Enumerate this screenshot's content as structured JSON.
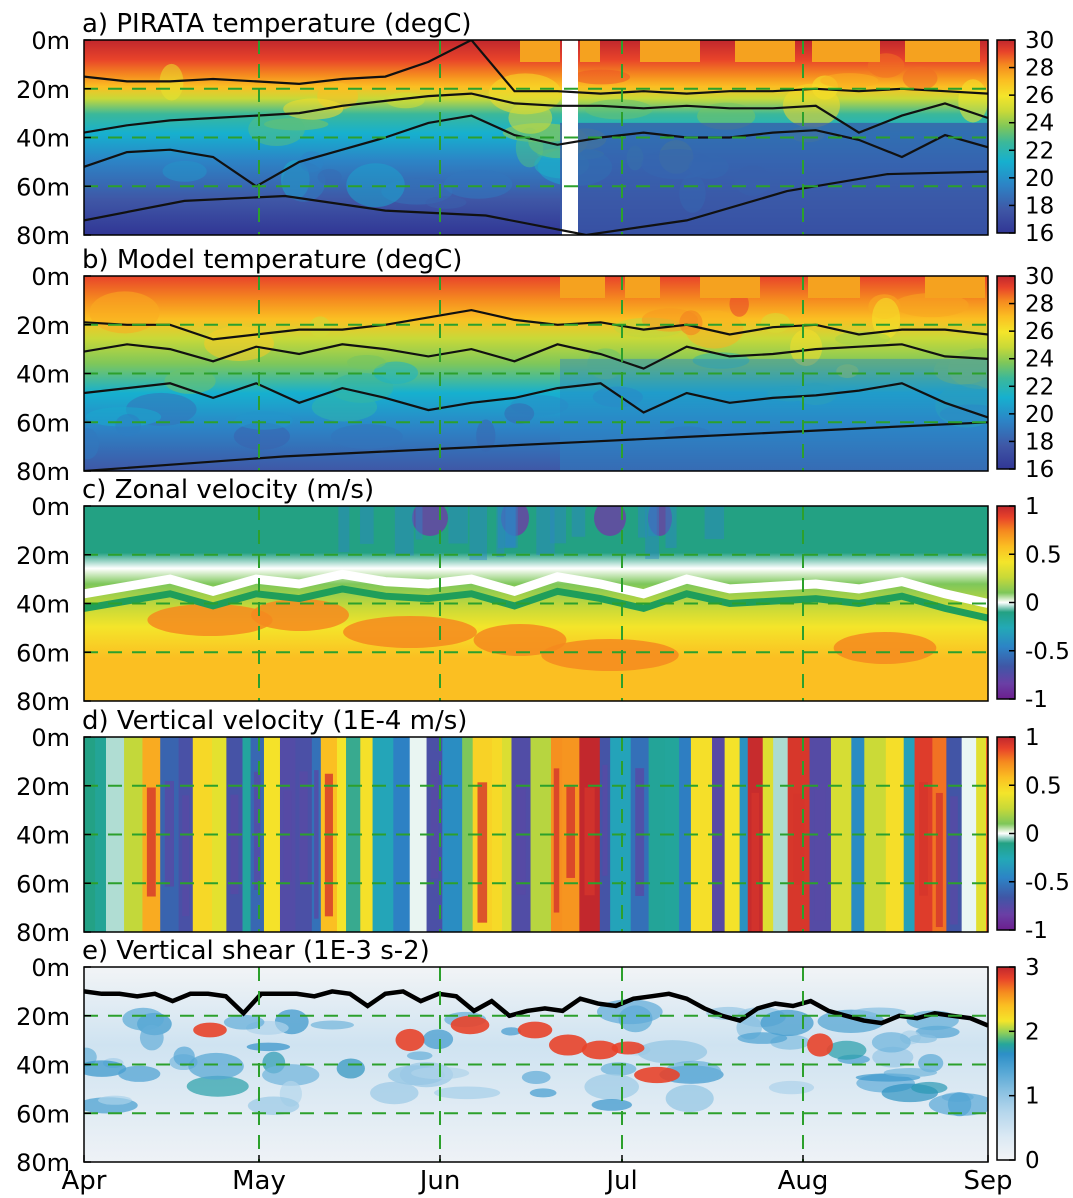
{
  "chart_data": [
    {
      "type": "heatmap",
      "title": "a) PIRATA temperature (degC)",
      "y_ticks": [
        "0m",
        "20m",
        "40m",
        "60m",
        "80m"
      ],
      "x_ticks": [
        "Apr",
        "May",
        "Jun",
        "Jul",
        "Aug",
        "Sep"
      ],
      "ylim": [
        80,
        0
      ],
      "colorbar": {
        "ticks": [
          "30",
          "28",
          "26",
          "24",
          "22",
          "20",
          "18",
          "16"
        ],
        "range": [
          16,
          30
        ]
      },
      "grid": true,
      "data_gap": {
        "start": "Jun 24",
        "end": "Jun 26"
      },
      "contours": [
        {
          "level": 26,
          "depths_m": [
            15,
            17,
            17,
            16,
            17,
            18,
            16,
            15,
            9,
            0,
            21,
            21,
            22,
            21,
            22,
            21,
            21,
            20,
            21,
            20,
            21,
            22
          ]
        },
        {
          "level": 24,
          "depths_m": [
            38,
            35,
            33,
            32,
            31,
            30,
            27,
            25,
            23,
            22,
            26,
            27,
            27,
            28,
            27,
            28,
            28,
            27,
            38,
            31,
            26,
            32
          ]
        },
        {
          "level": 22,
          "depths_m": [
            52,
            46,
            45,
            48,
            60,
            50,
            45,
            40,
            34,
            31,
            39,
            43,
            40,
            38,
            40,
            40,
            38,
            37,
            41,
            48,
            39,
            44
          ]
        },
        {
          "level": 18,
          "depths_m": [
            74,
            66,
            64,
            70,
            72,
            80,
            74,
            62,
            55,
            54
          ]
        }
      ]
    },
    {
      "type": "heatmap",
      "title": "b) Model temperature (degC)",
      "y_ticks": [
        "0m",
        "20m",
        "40m",
        "60m",
        "80m"
      ],
      "x_ticks": [
        "Apr",
        "May",
        "Jun",
        "Jul",
        "Aug",
        "Sep"
      ],
      "ylim": [
        80,
        0
      ],
      "colorbar": {
        "ticks": [
          "30",
          "28",
          "26",
          "24",
          "22",
          "20",
          "18",
          "16"
        ],
        "range": [
          16,
          30
        ]
      },
      "grid": true,
      "contours": [
        {
          "level": 26,
          "depths_m": [
            19,
            20,
            20,
            26,
            24,
            22,
            22,
            20,
            17,
            14,
            18,
            20,
            19,
            22,
            20,
            24,
            21,
            20,
            24,
            22,
            22,
            24
          ]
        },
        {
          "level": 24,
          "depths_m": [
            31,
            28,
            30,
            35,
            29,
            32,
            28,
            30,
            33,
            30,
            35,
            28,
            32,
            38,
            29,
            33,
            32,
            30,
            29,
            28,
            33,
            34
          ]
        },
        {
          "level": 22,
          "depths_m": [
            48,
            46,
            44,
            50,
            44,
            52,
            46,
            50,
            55,
            52,
            50,
            46,
            44,
            56,
            48,
            52,
            50,
            49,
            47,
            44,
            52,
            58
          ]
        },
        {
          "level": 18,
          "depths_m": [
            80,
            77,
            74,
            72,
            70,
            68,
            66,
            64,
            62,
            60
          ]
        }
      ]
    },
    {
      "type": "heatmap",
      "title": "c) Zonal velocity (m/s)",
      "y_ticks": [
        "0m",
        "20m",
        "40m",
        "60m",
        "80m"
      ],
      "x_ticks": [
        "Apr",
        "May",
        "Jun",
        "Jul",
        "Aug",
        "Sep"
      ],
      "ylim": [
        80,
        0
      ],
      "colorbar": {
        "ticks": [
          "1",
          "0.5",
          "0",
          "-0.5",
          "-1"
        ],
        "range": [
          -1,
          1
        ]
      },
      "grid": true,
      "zero_line_depths_m": [
        36,
        33,
        30,
        35,
        30,
        32,
        28,
        31,
        32,
        30,
        35,
        29,
        32,
        36,
        30,
        34,
        33,
        32,
        34,
        31,
        36,
        40
      ]
    },
    {
      "type": "heatmap",
      "title": "d) Vertical velocity (1E-4 m/s)",
      "y_ticks": [
        "0m",
        "20m",
        "40m",
        "60m",
        "80m"
      ],
      "x_ticks": [
        "Apr",
        "May",
        "Jun",
        "Jul",
        "Aug",
        "Sep"
      ],
      "ylim": [
        80,
        0
      ],
      "colorbar": {
        "ticks": [
          "1",
          "0.5",
          "0",
          "-0.5",
          "-1"
        ],
        "range": [
          -1,
          1
        ]
      },
      "grid": true
    },
    {
      "type": "heatmap",
      "title": "e) Vertical shear (1E-3 s-2)",
      "y_ticks": [
        "0m",
        "20m",
        "40m",
        "60m",
        "80m"
      ],
      "x_ticks": [
        "Apr",
        "May",
        "Jun",
        "Jul",
        "Aug",
        "Sep"
      ],
      "ylim": [
        80,
        0
      ],
      "colorbar": {
        "ticks": [
          "3",
          "2",
          "1",
          "0"
        ],
        "range": [
          0,
          3
        ]
      },
      "grid": true,
      "mixed_layer_depth_m": [
        10,
        11,
        11,
        12,
        11,
        14,
        11,
        11,
        12,
        19,
        11,
        11,
        11,
        12,
        10,
        11,
        16,
        11,
        10,
        14,
        11,
        12,
        18,
        14,
        20,
        18,
        17,
        18,
        13,
        15,
        16,
        13,
        12,
        11,
        13,
        17,
        20,
        22,
        17,
        15,
        16,
        14,
        18,
        20,
        22,
        23,
        20,
        21,
        19,
        20,
        21,
        24
      ]
    }
  ]
}
